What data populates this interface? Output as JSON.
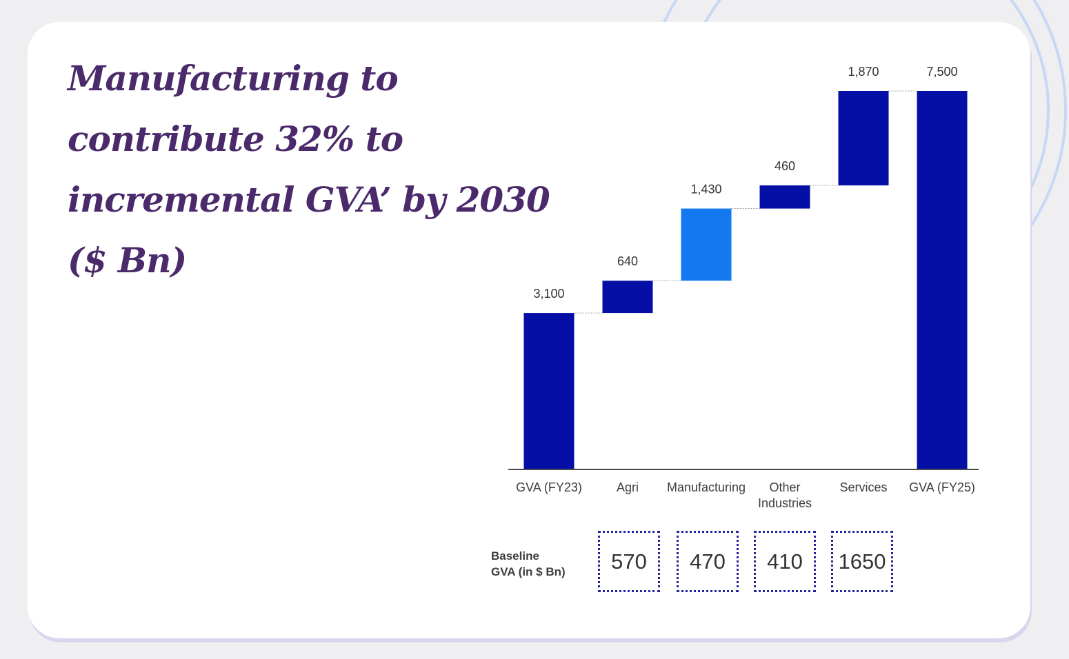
{
  "colors": {
    "bar_primary": "#050fa5",
    "bar_highlight": "#1478f0",
    "title": "#4a2a6a",
    "card_background": "#ffffff",
    "page_background": "#efeff1",
    "decor_rings": "#c5d8f5",
    "baseline_box_border": "#23239a"
  },
  "title": "Manufacturing to contribute 32% to incremental GVA’ by 2030 ($ Bn)",
  "chart_data": {
    "type": "bar",
    "subtype": "waterfall",
    "categories": [
      "GVA (FY23)",
      "Agri",
      "Manufacturing",
      "Other Industries",
      "Services",
      "GVA (FY25)"
    ],
    "category_lines": [
      [
        "GVA (FY23)"
      ],
      [
        "Agri"
      ],
      [
        "Manufacturing"
      ],
      [
        "Other",
        "Industries"
      ],
      [
        "Services"
      ],
      [
        "GVA (FY25)"
      ]
    ],
    "values": [
      3100,
      640,
      1430,
      460,
      1870,
      7500
    ],
    "value_labels": [
      "3,100",
      "640",
      "1,430",
      "460",
      "1,870",
      "7,500"
    ],
    "bar_roles": [
      "total",
      "increment",
      "increment",
      "increment",
      "increment",
      "total"
    ],
    "highlighted_category": "Manufacturing",
    "ylim": [
      0,
      7500
    ],
    "grid": false,
    "legend": "none",
    "connector_lines": "dotted"
  },
  "baseline": {
    "label_line1": "Baseline",
    "label_line2": "GVA (in $ Bn)",
    "values": [
      "570",
      "470",
      "410",
      "1650"
    ]
  }
}
